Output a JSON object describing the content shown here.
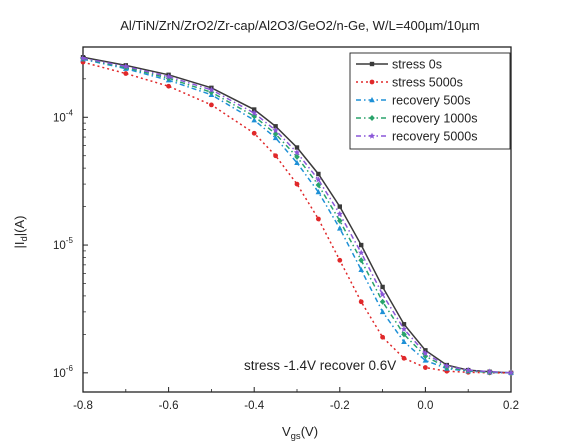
{
  "chart_data": {
    "type": "line",
    "title": "Al/TiN/ZrN/ZrO2/Zr-cap/Al2O3/GeO2/n-Ge, W/L=400µm/10µm",
    "xlabel": "Vgs(V)",
    "xlabel_main": "V",
    "xlabel_sub": "gs",
    "xlabel_unit": "(V)",
    "ylabel": "|Id|(A)",
    "ylabel_pre": "|I",
    "ylabel_sub": "d",
    "ylabel_post": "|(A)",
    "y_scale": "log",
    "xlim": [
      -0.8,
      0.2
    ],
    "x_ticks": [
      -0.8,
      -0.6,
      -0.4,
      -0.2,
      0.0,
      0.2
    ],
    "x_tick_labels": [
      "-0.8",
      "-0.6",
      "-0.4",
      "-0.2",
      "0.0",
      "0.2"
    ],
    "y_ticks": [
      {
        "base": "10",
        "exp": "-4"
      },
      {
        "base": "10",
        "exp": "-5"
      },
      {
        "base": "10",
        "exp": "-6"
      }
    ],
    "legend_position": "top-right",
    "annotation": "stress -1.4V recover 0.6V",
    "series": [
      {
        "name": "stress 0s",
        "color": "#3a3a3a",
        "style": "solid",
        "marker": "square",
        "x": [
          -0.8,
          -0.7,
          -0.6,
          -0.5,
          -0.4,
          -0.35,
          -0.3,
          -0.25,
          -0.2,
          -0.15,
          -0.1,
          -0.05,
          0.0,
          0.05,
          0.1,
          0.15,
          0.2
        ],
        "y": [
          0.000295,
          0.000255,
          0.000215,
          0.00017,
          0.000115,
          8.5e-05,
          5.8e-05,
          3.6e-05,
          2e-05,
          1e-05,
          4.7e-06,
          2.4e-06,
          1.5e-06,
          1.15e-06,
          1.05e-06,
          1.02e-06,
          1e-06
        ]
      },
      {
        "name": "stress 5000s",
        "color": "#e0282a",
        "style": "dotted",
        "marker": "circle",
        "x": [
          -0.8,
          -0.7,
          -0.6,
          -0.5,
          -0.4,
          -0.35,
          -0.3,
          -0.25,
          -0.2,
          -0.15,
          -0.1,
          -0.05,
          0.0,
          0.05,
          0.1,
          0.15,
          0.2
        ],
        "y": [
          0.00027,
          0.00022,
          0.000175,
          0.000125,
          7.5e-05,
          5e-05,
          3e-05,
          1.6e-05,
          7.6e-06,
          3.6e-06,
          1.9e-06,
          1.3e-06,
          1.1e-06,
          1.03e-06,
          1.01e-06,
          1e-06,
          1e-06
        ]
      },
      {
        "name": "recovery 500s",
        "color": "#1e90d6",
        "style": "dashdot",
        "marker": "triangle",
        "x": [
          -0.8,
          -0.7,
          -0.6,
          -0.5,
          -0.4,
          -0.35,
          -0.3,
          -0.25,
          -0.2,
          -0.15,
          -0.1,
          -0.05,
          0.0,
          0.05,
          0.1,
          0.15,
          0.2
        ],
        "y": [
          0.000285,
          0.00024,
          0.000195,
          0.00015,
          9.5e-05,
          6.9e-05,
          4.4e-05,
          2.6e-05,
          1.35e-05,
          6.4e-06,
          3e-06,
          1.75e-06,
          1.25e-06,
          1.08e-06,
          1.03e-06,
          1.01e-06,
          1e-06
        ]
      },
      {
        "name": "recovery 1000s",
        "color": "#2aa36b",
        "style": "dashdot",
        "marker": "diamond",
        "x": [
          -0.8,
          -0.7,
          -0.6,
          -0.5,
          -0.4,
          -0.35,
          -0.3,
          -0.25,
          -0.2,
          -0.15,
          -0.1,
          -0.05,
          0.0,
          0.05,
          0.1,
          0.15,
          0.2
        ],
        "y": [
          0.000288,
          0.000245,
          0.000202,
          0.000157,
          0.000102,
          7.4e-05,
          4.9e-05,
          2.95e-05,
          1.55e-05,
          7.6e-06,
          3.6e-06,
          2e-06,
          1.35e-06,
          1.1e-06,
          1.04e-06,
          1.01e-06,
          1e-06
        ]
      },
      {
        "name": "recovery 5000s",
        "color": "#8a56d8",
        "style": "dashdot",
        "marker": "star",
        "x": [
          -0.8,
          -0.7,
          -0.6,
          -0.5,
          -0.4,
          -0.35,
          -0.3,
          -0.25,
          -0.2,
          -0.15,
          -0.1,
          -0.05,
          0.0,
          0.05,
          0.1,
          0.15,
          0.2
        ],
        "y": [
          0.00029,
          0.00025,
          0.000208,
          0.000164,
          0.000108,
          7.9e-05,
          5.3e-05,
          3.25e-05,
          1.75e-05,
          8.7e-06,
          4.1e-06,
          2.2e-06,
          1.42e-06,
          1.13e-06,
          1.05e-06,
          1.02e-06,
          1e-06
        ]
      }
    ]
  }
}
